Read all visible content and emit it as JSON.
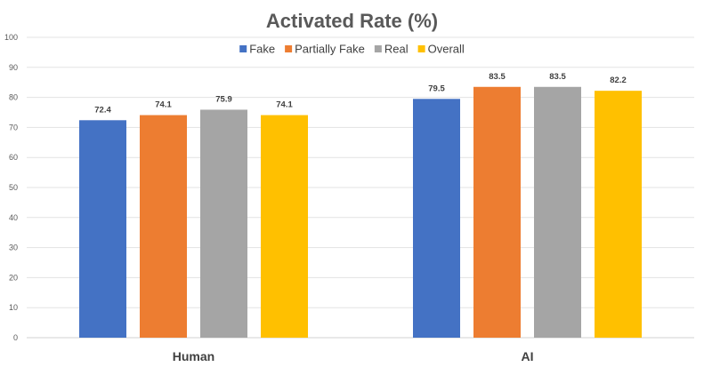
{
  "chart_data": {
    "type": "bar",
    "title": "Activated Rate (%)",
    "categories": [
      "Human",
      "AI"
    ],
    "series": [
      {
        "name": "Fake",
        "values": [
          72.4,
          79.5
        ],
        "color": "#4472C4"
      },
      {
        "name": "Partially Fake",
        "values": [
          74.1,
          83.5
        ],
        "color": "#ED7D31"
      },
      {
        "name": "Real",
        "values": [
          75.9,
          83.5
        ],
        "color": "#A5A5A5"
      },
      {
        "name": "Overall",
        "values": [
          74.1,
          82.2
        ],
        "color": "#FFC000"
      }
    ],
    "ylim": [
      0,
      100
    ],
    "yticks": [
      0,
      10,
      20,
      30,
      40,
      50,
      60,
      70,
      80,
      90,
      100
    ],
    "grid": true,
    "legend_position": "top"
  }
}
